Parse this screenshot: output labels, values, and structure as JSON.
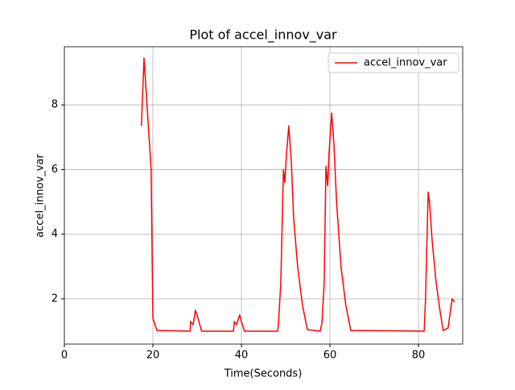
{
  "chart_data": {
    "type": "line",
    "title": "Plot of accel_innov_var",
    "xlabel": "Time(Seconds)",
    "ylabel": "accel_innov_var",
    "x": [
      17.4,
      18.0,
      19.6,
      20.0,
      20.9,
      28.4,
      28.5,
      29.1,
      29.6,
      30.2,
      31.0,
      38.2,
      38.4,
      38.9,
      39.6,
      40.0,
      40.7,
      48.2,
      48.4,
      48.9,
      49.5,
      49.8,
      50.2,
      50.7,
      51.3,
      51.8,
      52.7,
      53.8,
      54.9,
      57.8,
      58.2,
      58.7,
      59.1,
      59.5,
      59.8,
      60.4,
      60.9,
      61.5,
      62.5,
      63.6,
      64.7,
      81.3,
      81.6,
      82.2,
      82.5,
      83.1,
      84.0,
      84.9,
      85.6,
      86.7,
      87.6,
      88.2
    ],
    "series": [
      {
        "name": "accel_innov_var",
        "color": "#ff0000",
        "values": [
          7.35,
          9.45,
          6.0,
          1.4,
          1.02,
          1.0,
          1.3,
          1.2,
          1.65,
          1.4,
          1.0,
          1.0,
          1.3,
          1.2,
          1.5,
          1.3,
          1.0,
          1.0,
          1.3,
          2.5,
          6.0,
          5.6,
          6.5,
          7.35,
          6.2,
          4.5,
          3.0,
          1.8,
          1.05,
          1.0,
          1.25,
          2.5,
          6.1,
          5.5,
          6.5,
          7.75,
          6.8,
          5.0,
          3.0,
          1.8,
          1.02,
          1.0,
          2.0,
          5.3,
          5.0,
          3.8,
          2.5,
          1.6,
          1.02,
          1.1,
          2.0,
          1.9
        ]
      }
    ],
    "xlim": [
      0,
      90
    ],
    "ylim": [
      0.6,
      9.8
    ],
    "xticks": [
      0,
      20,
      40,
      60,
      80
    ],
    "yticks": [
      2,
      4,
      6,
      8
    ],
    "grid": true,
    "legend": "upper right"
  }
}
